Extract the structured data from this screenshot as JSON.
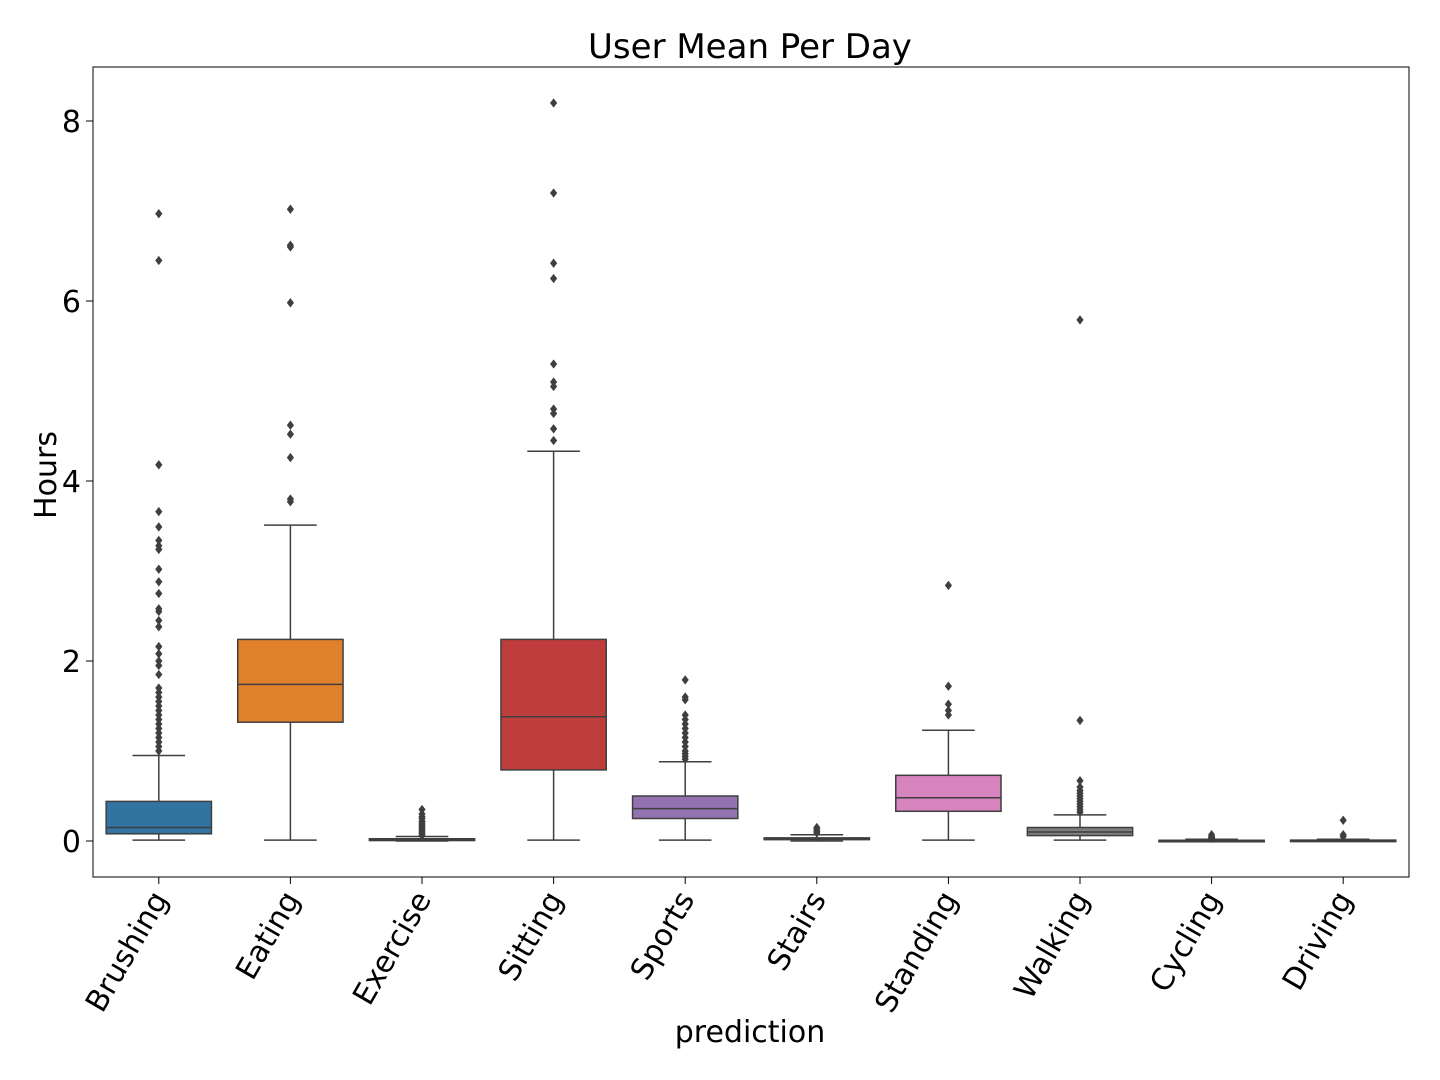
{
  "chart_data": {
    "type": "box",
    "title": "User Mean Per Day",
    "xlabel": "prediction",
    "ylabel": "Hours",
    "ylim": [
      -0.4,
      8.6
    ],
    "yticks": [
      0,
      2,
      4,
      6,
      8
    ],
    "categories": [
      "Brushing",
      "Eating",
      "Exercise",
      "Sitting",
      "Sports",
      "Stairs",
      "Standing",
      "Walking",
      "Cycling",
      "Driving"
    ],
    "boxes": [
      {
        "category": "Brushing",
        "color": "#3274a1",
        "whislo": 0.01,
        "q1": 0.08,
        "med": 0.15,
        "q3": 0.44,
        "whishi": 0.95,
        "fliers": [
          6.97,
          6.45,
          4.18,
          3.66,
          3.49,
          3.34,
          3.28,
          3.24,
          3.02,
          2.88,
          2.75,
          2.58,
          2.55,
          2.45,
          2.38,
          2.16,
          2.08,
          2.0,
          1.95,
          1.85,
          1.7,
          1.65,
          1.6,
          1.55,
          1.5,
          1.45,
          1.4,
          1.35,
          1.3,
          1.25,
          1.2,
          1.15,
          1.1,
          1.05,
          1.0
        ]
      },
      {
        "category": "Eating",
        "color": "#e1812c",
        "whislo": 0.01,
        "q1": 1.32,
        "med": 1.74,
        "q3": 2.24,
        "whishi": 3.51,
        "fliers": [
          7.02,
          6.62,
          6.6,
          5.98,
          4.62,
          4.52,
          4.26,
          3.8,
          3.77
        ]
      },
      {
        "category": "Exercise",
        "color": "#3a923a",
        "whislo": 0.0,
        "q1": 0.005,
        "med": 0.01,
        "q3": 0.025,
        "whishi": 0.05,
        "fliers": [
          0.35,
          0.3,
          0.27,
          0.25,
          0.22,
          0.2,
          0.18,
          0.16,
          0.14,
          0.12,
          0.1,
          0.08,
          0.06
        ]
      },
      {
        "category": "Sitting",
        "color": "#c03d3e",
        "whislo": 0.01,
        "q1": 0.79,
        "med": 1.38,
        "q3": 2.24,
        "whishi": 4.33,
        "fliers": [
          8.2,
          7.2,
          6.42,
          6.25,
          5.3,
          5.1,
          5.05,
          4.8,
          4.75,
          4.58,
          4.45
        ]
      },
      {
        "category": "Sports",
        "color": "#9372b2",
        "whislo": 0.01,
        "q1": 0.25,
        "med": 0.36,
        "q3": 0.5,
        "whishi": 0.88,
        "fliers": [
          1.79,
          1.6,
          1.57,
          1.4,
          1.35,
          1.3,
          1.25,
          1.2,
          1.15,
          1.1,
          1.05,
          1.0,
          0.97,
          0.94,
          0.91
        ]
      },
      {
        "category": "Stairs",
        "color": "#845b53",
        "whislo": 0.0,
        "q1": 0.015,
        "med": 0.02,
        "q3": 0.035,
        "whishi": 0.07,
        "fliers": [
          0.15,
          0.13,
          0.11,
          0.09
        ]
      },
      {
        "category": "Standing",
        "color": "#d684bd",
        "whislo": 0.01,
        "q1": 0.33,
        "med": 0.48,
        "q3": 0.73,
        "whishi": 1.23,
        "fliers": [
          2.84,
          1.72,
          1.52,
          1.45,
          1.4
        ]
      },
      {
        "category": "Walking",
        "color": "#7f7f7f",
        "whislo": 0.01,
        "q1": 0.06,
        "med": 0.1,
        "q3": 0.15,
        "whishi": 0.29,
        "fliers": [
          5.79,
          1.34,
          0.67,
          0.6,
          0.56,
          0.53,
          0.5,
          0.47,
          0.44,
          0.41,
          0.38,
          0.35,
          0.32
        ]
      },
      {
        "category": "Cycling",
        "color": "#a9aa35",
        "whislo": 0.0,
        "q1": 0.0,
        "med": 0.003,
        "q3": 0.008,
        "whishi": 0.02,
        "fliers": [
          0.07,
          0.05,
          0.04,
          0.03
        ]
      },
      {
        "category": "Driving",
        "color": "#2ed0d2",
        "whislo": 0.0,
        "q1": 0.0,
        "med": 0.004,
        "q3": 0.01,
        "whishi": 0.02,
        "fliers": [
          0.23,
          0.07,
          0.05
        ]
      }
    ],
    "grid": false,
    "legend": "none"
  }
}
